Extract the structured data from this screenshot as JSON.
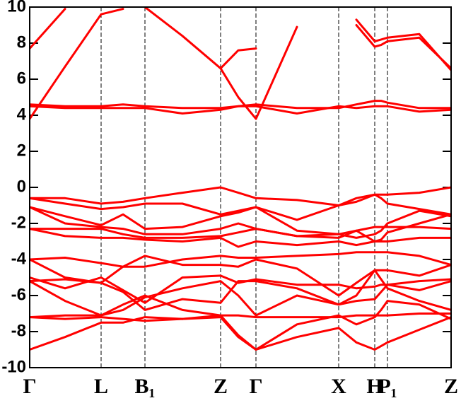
{
  "chart_data": {
    "type": "line",
    "color": "#ff0000",
    "x": [
      0,
      50,
      101,
      132,
      163,
      216,
      270,
      295,
      320,
      378,
      437,
      462,
      488,
      497,
      506,
      551,
      596
    ],
    "xlim": [
      0,
      596
    ],
    "xticks": [
      {
        "value": 0,
        "label": "Γ"
      },
      {
        "value": 101,
        "label": "L"
      },
      {
        "value": 163,
        "label": "B₁"
      },
      {
        "value": 270,
        "label": "Z"
      },
      {
        "value": 320,
        "label": "Γ"
      },
      {
        "value": 437,
        "label": "X"
      },
      {
        "value": 488,
        "label": "H"
      },
      {
        "value": 506,
        "label": "P₁"
      },
      {
        "value": 596,
        "label": "Z"
      }
    ],
    "ylim": [
      -10,
      10
    ],
    "yticks": [
      -10,
      -8,
      -6,
      -4,
      -2,
      0,
      2,
      4,
      6,
      8,
      10
    ],
    "series": [
      {
        "values": [
          7.7,
          9.9,
          null,
          null,
          null,
          null,
          null,
          null,
          null,
          null,
          null,
          null,
          null,
          null,
          null,
          null,
          null
        ]
      },
      {
        "values": [
          3.8,
          6.7,
          9.6,
          9.9,
          null,
          null,
          null,
          null,
          null,
          null,
          null,
          null,
          null,
          null,
          null,
          null,
          null
        ]
      },
      {
        "values": [
          null,
          null,
          null,
          null,
          10.0,
          8.4,
          6.6,
          5.0,
          3.8,
          8.9,
          null,
          null,
          null,
          null,
          null,
          null,
          null
        ]
      },
      {
        "values": [
          null,
          null,
          null,
          null,
          null,
          null,
          6.6,
          7.6,
          7.7,
          null,
          null,
          null,
          null,
          null,
          null,
          null,
          null
        ]
      },
      {
        "values": [
          null,
          null,
          null,
          null,
          null,
          null,
          null,
          null,
          null,
          null,
          null,
          9.0,
          7.8,
          7.9,
          8.1,
          8.3,
          6.6
        ]
      },
      {
        "values": [
          null,
          null,
          null,
          null,
          null,
          null,
          null,
          null,
          null,
          null,
          null,
          9.3,
          8.1,
          8.2,
          8.3,
          8.5,
          6.5
        ]
      },
      {
        "values": [
          4.6,
          4.5,
          4.5,
          4.6,
          4.5,
          4.4,
          4.4,
          4.5,
          4.6,
          4.4,
          4.4,
          4.6,
          4.8,
          4.8,
          4.7,
          4.4,
          4.4
        ]
      },
      {
        "values": [
          4.5,
          4.4,
          4.4,
          4.4,
          4.4,
          4.1,
          4.3,
          4.5,
          4.5,
          4.1,
          4.5,
          4.4,
          4.5,
          4.5,
          4.5,
          4.2,
          4.3
        ]
      },
      {
        "values": [
          -0.6,
          -0.6,
          -0.9,
          -0.8,
          -0.6,
          -0.3,
          0.0,
          -0.3,
          -0.6,
          -0.7,
          -1.0,
          -0.6,
          -0.4,
          -0.4,
          -0.4,
          -0.3,
          0.0
        ]
      },
      {
        "values": [
          -0.6,
          -0.9,
          -1.2,
          -1.1,
          -0.9,
          -0.9,
          -1.5,
          -1.3,
          -1.1,
          -1.8,
          -1.0,
          -0.8,
          -0.4,
          -0.6,
          -0.9,
          -1.2,
          -1.5
        ]
      },
      {
        "values": [
          -1.1,
          -1.6,
          -2.1,
          -1.5,
          -2.3,
          -2.2,
          -1.6,
          -1.4,
          -1.1,
          -2.4,
          -2.6,
          -2.4,
          -2.2,
          -2.2,
          -2.2,
          -2.2,
          -2.3
        ]
      },
      {
        "values": [
          -1.1,
          -2.0,
          -2.2,
          -2.3,
          -2.6,
          -2.6,
          -2.3,
          -2.0,
          -2.3,
          -2.7,
          -2.6,
          -2.8,
          -2.6,
          -2.4,
          -2.0,
          -1.3,
          -1.6
        ]
      },
      {
        "values": [
          -2.3,
          -2.3,
          -2.3,
          -2.6,
          -2.8,
          -2.8,
          -2.7,
          -2.5,
          -2.3,
          -2.7,
          -2.8,
          -2.4,
          -3.0,
          -2.9,
          -2.5,
          -2.0,
          -1.5
        ]
      },
      {
        "values": [
          -2.3,
          -2.7,
          -2.8,
          -2.8,
          -2.9,
          -3.0,
          -2.8,
          -3.3,
          -3.0,
          -3.2,
          -3.0,
          -3.2,
          -3.0,
          -3.0,
          -3.0,
          -2.8,
          -2.8
        ]
      },
      {
        "values": [
          -4.0,
          -3.9,
          -4.2,
          -4.4,
          -4.4,
          -4.0,
          -3.8,
          -3.9,
          -3.9,
          -3.8,
          -3.7,
          -3.6,
          -3.6,
          -3.6,
          -3.6,
          -3.8,
          -4.3
        ]
      },
      {
        "values": [
          -4.0,
          -5.0,
          -5.3,
          -4.4,
          -3.8,
          -4.3,
          -4.3,
          -4.4,
          -4.0,
          -4.5,
          -6.0,
          -5.3,
          -4.6,
          -4.6,
          -4.6,
          -4.9,
          -4.3
        ]
      },
      {
        "values": [
          -5.0,
          -5.6,
          -5.0,
          -5.7,
          -6.4,
          -5.0,
          -4.9,
          -5.3,
          -5.1,
          -5.4,
          -5.4,
          -5.6,
          -5.5,
          -5.4,
          -5.4,
          -5.2,
          -5.1
        ]
      },
      {
        "values": [
          -5.2,
          -5.1,
          -5.3,
          -5.8,
          -6.8,
          -6.2,
          -6.4,
          -5.2,
          -5.2,
          -5.6,
          -6.5,
          -6.3,
          -6.2,
          -5.8,
          -5.4,
          -5.7,
          -5.2
        ]
      },
      {
        "values": [
          -5.2,
          -6.3,
          -7.1,
          -6.8,
          -6.1,
          -5.6,
          -5.2,
          -6.0,
          -7.1,
          -6.0,
          -6.5,
          -6.0,
          -4.6,
          -5.1,
          -5.6,
          -6.3,
          -6.8
        ]
      },
      {
        "values": [
          -7.2,
          -7.1,
          -7.1,
          -6.5,
          -6.0,
          -6.8,
          -7.1,
          -7.1,
          -7.2,
          -7.2,
          -7.2,
          -7.1,
          -7.1,
          -7.1,
          -7.1,
          -7.0,
          -7.0
        ]
      },
      {
        "values": [
          -7.2,
          -7.3,
          -7.2,
          -7.3,
          -7.4,
          -7.3,
          -7.2,
          -8.3,
          -9.0,
          -7.6,
          -7.1,
          -7.6,
          -7.2,
          -6.8,
          -6.3,
          -6.5,
          -7.3
        ]
      },
      {
        "values": [
          -9.0,
          -8.3,
          -7.5,
          -7.5,
          -7.2,
          -7.3,
          -7.1,
          -8.2,
          -9.0,
          -8.3,
          -7.8,
          -8.6,
          -9.0,
          -8.8,
          -8.6,
          -7.9,
          -7.2
        ]
      }
    ]
  }
}
